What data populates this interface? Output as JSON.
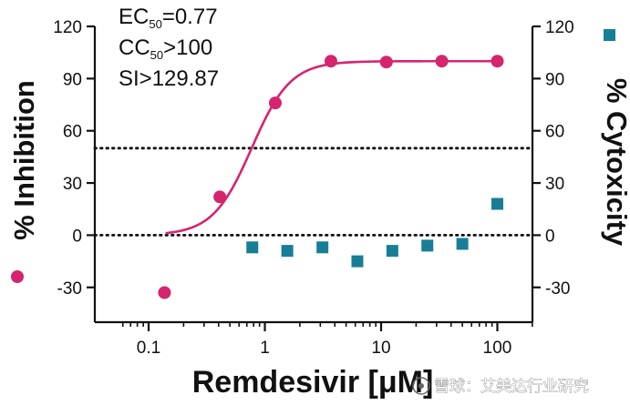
{
  "chart_data": {
    "type": "scatter",
    "title": "",
    "xlabel": "Remdesivir [μM]",
    "xscale": "log",
    "xlim": [
      0.05,
      200
    ],
    "x_ticks": [
      0.1,
      1,
      10,
      100
    ],
    "x_tick_labels": [
      "0.1",
      "1",
      "10",
      "100"
    ],
    "y_left": {
      "label": "% Inhibition",
      "ticks": [
        -30,
        0,
        30,
        60,
        90,
        120
      ],
      "tick_labels": [
        "-30",
        "0",
        "30",
        "60",
        "90",
        "120"
      ],
      "ylim": [
        -50,
        120
      ]
    },
    "y_right": {
      "label": "% Cytoxicity",
      "ticks": [
        -30,
        0,
        30,
        60,
        90,
        120
      ],
      "tick_labels": [
        "-30",
        "0",
        "30",
        "60",
        "90",
        "120"
      ],
      "ylim": [
        -50,
        120
      ]
    },
    "reference_lines": [
      {
        "axis": "y",
        "value": 50,
        "style": "dotted"
      },
      {
        "axis": "y",
        "value": 0,
        "style": "dotted"
      }
    ],
    "series": [
      {
        "name": "% Inhibition",
        "axis": "left",
        "marker": "circle",
        "color": "#d6246e",
        "x": [
          0.137,
          0.41,
          1.23,
          3.7,
          11.1,
          33.3,
          100
        ],
        "y": [
          -33,
          22,
          76,
          100,
          99.5,
          100,
          100
        ]
      },
      {
        "name": "% Inhibition fit",
        "axis": "left",
        "marker": "line",
        "color": "#d6246e",
        "model": "four-parameter logistic",
        "bottom": 0,
        "top": 100,
        "ec50": 0.77,
        "hill": 2.6,
        "x_range": [
          0.14,
          100
        ]
      },
      {
        "name": "% Cytoxicity",
        "axis": "right",
        "marker": "square",
        "color": "#177e96",
        "x": [
          0.78,
          1.56,
          3.13,
          6.25,
          12.5,
          25,
          50,
          100
        ],
        "y": [
          -7,
          -9,
          -7,
          -15,
          -9,
          -6,
          -5,
          18
        ]
      }
    ],
    "annotations": {
      "ec_prefix": "EC",
      "ec_sub": "50",
      "ec_value": "=0.77",
      "cc_prefix": "CC",
      "cc_sub": "50",
      "cc_value": ">100",
      "si_text": "SI>129.87"
    },
    "legend": {
      "inhibition_marker": "circle",
      "cytotoxicity_marker": "square"
    }
  },
  "watermark": {
    "text": "雪球：艾美达行业研究"
  }
}
